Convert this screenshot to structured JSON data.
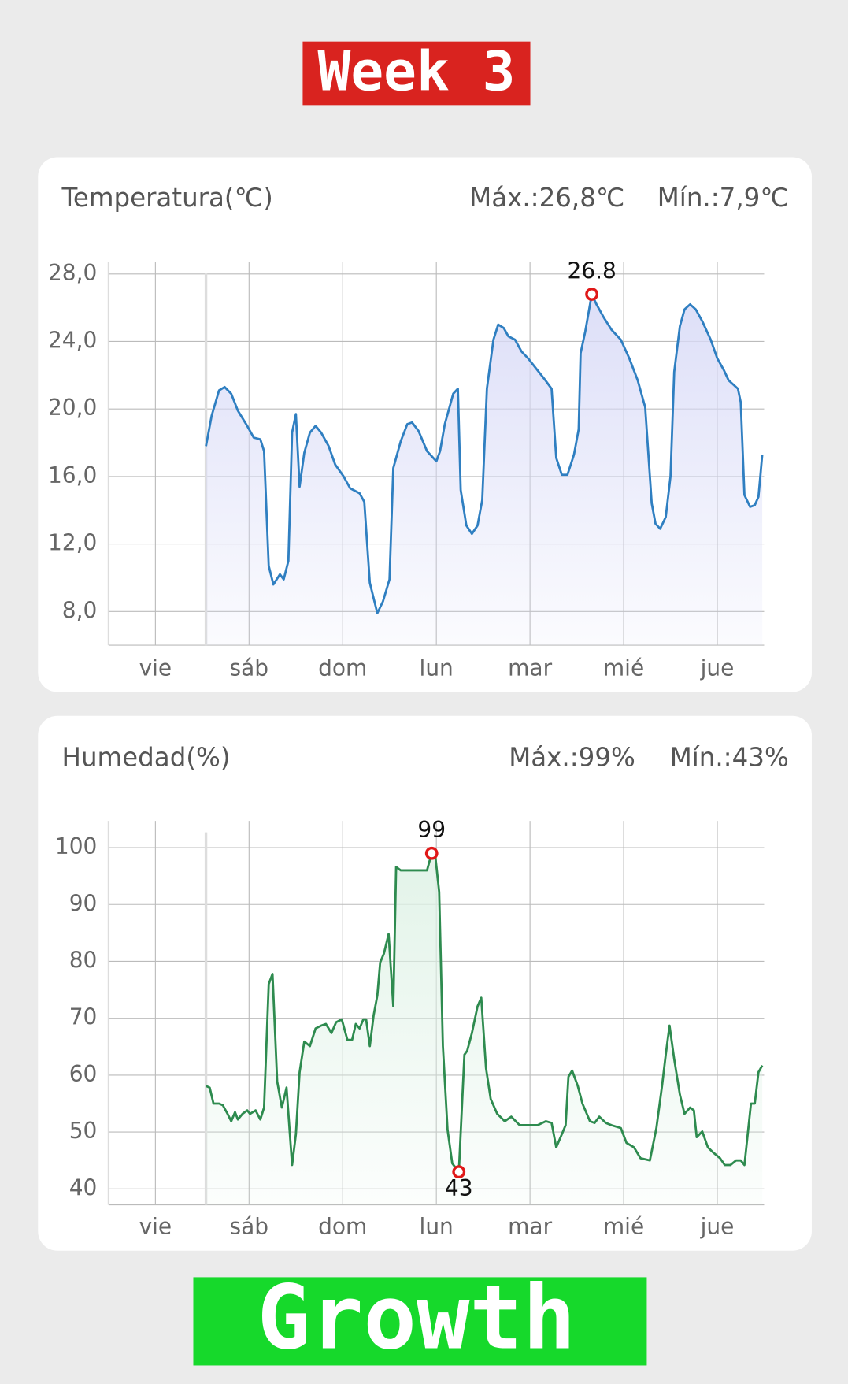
{
  "header": {
    "label": "Week 3"
  },
  "footer": {
    "label": "Growth"
  },
  "chart_data": [
    {
      "type": "line",
      "title": "Temperatura(℃)",
      "max_label": "Máx.:26,8℃",
      "min_label": "Mín.:7,9℃",
      "color": "#2f7fc1",
      "area_color": "#d9dbf7",
      "grid": true,
      "xlim": [
        -0.5,
        6.5
      ],
      "xticks": [
        {
          "value": 0,
          "label": "vie"
        },
        {
          "value": 1,
          "label": "sáb"
        },
        {
          "value": 2,
          "label": "dom"
        },
        {
          "value": 3,
          "label": "lun"
        },
        {
          "value": 4,
          "label": "mar"
        },
        {
          "value": 5,
          "label": "mié"
        },
        {
          "value": 6,
          "label": "jue"
        }
      ],
      "ylim": [
        6,
        28.7
      ],
      "yticks": [
        {
          "value": 8,
          "label": "8,0"
        },
        {
          "value": 12,
          "label": "12,0"
        },
        {
          "value": 16,
          "label": "16,0"
        },
        {
          "value": 20,
          "label": "20,0"
        },
        {
          "value": 24,
          "label": "24,0"
        },
        {
          "value": 28,
          "label": "28,0"
        }
      ],
      "x": [
        0.54,
        0.6,
        0.68,
        0.74,
        0.81,
        0.88,
        0.98,
        1.05,
        1.12,
        1.16,
        1.21,
        1.26,
        1.33,
        1.37,
        1.42,
        1.46,
        1.5,
        1.54,
        1.59,
        1.65,
        1.71,
        1.77,
        1.85,
        1.92,
        2.01,
        2.08,
        2.18,
        2.23,
        2.29,
        2.37,
        2.43,
        2.5,
        2.54,
        2.62,
        2.69,
        2.74,
        2.81,
        2.9,
        3.0,
        3.04,
        3.09,
        3.14,
        3.18,
        3.23,
        3.26,
        3.32,
        3.38,
        3.44,
        3.49,
        3.54,
        3.61,
        3.66,
        3.72,
        3.77,
        3.84,
        3.91,
        3.98,
        4.08,
        4.15,
        4.23,
        4.28,
        4.34,
        4.4,
        4.47,
        4.52,
        4.54,
        4.59,
        4.66,
        4.71,
        4.79,
        4.87,
        4.97,
        5.06,
        5.15,
        5.23,
        5.3,
        5.34,
        5.39,
        5.45,
        5.5,
        5.54,
        5.6,
        5.65,
        5.71,
        5.77,
        5.84,
        5.93,
        6.0,
        6.07,
        6.12,
        6.22,
        6.25,
        6.29,
        6.35,
        6.4,
        6.44,
        6.48
      ],
      "values": [
        17.8,
        19.6,
        21.1,
        21.3,
        20.9,
        19.9,
        19.0,
        18.3,
        18.2,
        17.5,
        10.7,
        9.6,
        10.2,
        9.9,
        11.0,
        18.6,
        19.7,
        15.4,
        17.4,
        18.6,
        19.0,
        18.6,
        17.8,
        16.7,
        16.0,
        15.3,
        15.0,
        14.5,
        9.7,
        7.9,
        8.6,
        9.9,
        16.5,
        18.1,
        19.1,
        19.2,
        18.7,
        17.5,
        16.9,
        17.5,
        19.1,
        20.1,
        20.9,
        21.2,
        15.2,
        13.1,
        12.6,
        13.1,
        14.6,
        21.2,
        24.1,
        25.0,
        24.8,
        24.3,
        24.1,
        23.4,
        23.0,
        22.3,
        21.8,
        21.2,
        17.1,
        16.1,
        16.1,
        17.3,
        18.8,
        23.3,
        24.6,
        26.8,
        26.2,
        25.4,
        24.7,
        24.1,
        23.0,
        21.7,
        20.1,
        14.4,
        13.2,
        12.9,
        13.6,
        16.0,
        22.2,
        24.9,
        25.9,
        26.2,
        25.9,
        25.2,
        24.1,
        23.0,
        22.3,
        21.7,
        21.2,
        20.4,
        14.9,
        14.2,
        14.3,
        14.8,
        17.3
      ],
      "annotations": [
        {
          "x": 4.66,
          "y": 26.8,
          "position": "above"
        }
      ]
    },
    {
      "type": "line",
      "title": "Humedad(%)",
      "max_label": "Máx.:99%",
      "min_label": "Mín.:43%",
      "color": "#2e8b4f",
      "area_color": "#dff2e6",
      "grid": true,
      "xlim": [
        -0.5,
        6.5
      ],
      "xticks": [
        {
          "value": 0,
          "label": "vie"
        },
        {
          "value": 1,
          "label": "sáb"
        },
        {
          "value": 2,
          "label": "dom"
        },
        {
          "value": 3,
          "label": "lun"
        },
        {
          "value": 4,
          "label": "mar"
        },
        {
          "value": 5,
          "label": "mié"
        },
        {
          "value": 6,
          "label": "jue"
        }
      ],
      "ylim": [
        37.2,
        104.7
      ],
      "yticks": [
        40,
        50,
        60,
        70,
        80,
        90,
        100
      ],
      "x": [
        0.54,
        0.58,
        0.62,
        0.68,
        0.72,
        0.77,
        0.81,
        0.85,
        0.88,
        0.93,
        0.98,
        1.01,
        1.07,
        1.12,
        1.16,
        1.21,
        1.25,
        1.3,
        1.35,
        1.4,
        1.46,
        1.5,
        1.54,
        1.59,
        1.65,
        1.71,
        1.77,
        1.82,
        1.88,
        1.93,
        1.99,
        2.05,
        2.1,
        2.14,
        2.18,
        2.22,
        2.25,
        2.29,
        2.33,
        2.37,
        2.4,
        2.44,
        2.49,
        2.54,
        2.57,
        2.62,
        2.9,
        2.95,
        2.99,
        3.03,
        3.07,
        3.12,
        3.17,
        3.24,
        3.3,
        3.33,
        3.38,
        3.44,
        3.48,
        3.53,
        3.58,
        3.65,
        3.73,
        3.8,
        3.89,
        3.98,
        4.08,
        4.17,
        4.23,
        4.28,
        4.34,
        4.38,
        4.41,
        4.45,
        4.51,
        4.56,
        4.64,
        4.69,
        4.74,
        4.81,
        4.87,
        4.97,
        5.03,
        5.11,
        5.18,
        5.28,
        5.35,
        5.41,
        5.45,
        5.49,
        5.54,
        5.6,
        5.65,
        5.71,
        5.75,
        5.78,
        5.84,
        5.9,
        5.95,
        6.03,
        6.08,
        6.14,
        6.2,
        6.25,
        6.29,
        6.36,
        6.4,
        6.44,
        6.48
      ],
      "values": [
        58.1,
        57.8,
        55.0,
        55.0,
        54.7,
        53.2,
        51.9,
        53.5,
        52.2,
        53.2,
        53.8,
        53.2,
        53.8,
        52.2,
        54.3,
        76.0,
        77.8,
        58.9,
        54.3,
        57.8,
        44.2,
        49.6,
        60.5,
        65.9,
        65.1,
        68.2,
        68.7,
        69.0,
        67.4,
        69.3,
        69.8,
        66.2,
        66.2,
        69.0,
        68.2,
        69.8,
        69.8,
        65.1,
        70.5,
        74.0,
        79.8,
        81.4,
        84.8,
        72.1,
        96.6,
        96.0,
        96.0,
        99,
        98.4,
        92.2,
        65.1,
        50.4,
        44.5,
        43,
        63.6,
        64.3,
        67.4,
        72.1,
        73.6,
        61.2,
        55.8,
        53.2,
        51.9,
        52.7,
        51.2,
        51.2,
        51.2,
        51.9,
        51.6,
        47.3,
        49.6,
        51.2,
        59.7,
        60.8,
        58.1,
        55.0,
        51.9,
        51.6,
        52.7,
        51.6,
        51.2,
        50.7,
        48.1,
        47.3,
        45.4,
        45.0,
        50.7,
        58.1,
        63.6,
        68.7,
        62.8,
        56.6,
        53.2,
        54.3,
        53.8,
        49.1,
        50.1,
        47.3,
        46.5,
        45.4,
        44.2,
        44.2,
        45.0,
        45.0,
        44.2,
        55.0,
        55.0,
        60.5,
        61.7
      ],
      "annotations": [
        {
          "x": 2.95,
          "y": 99,
          "position": "above"
        },
        {
          "x": 3.24,
          "y": 43,
          "position": "below"
        }
      ]
    }
  ]
}
